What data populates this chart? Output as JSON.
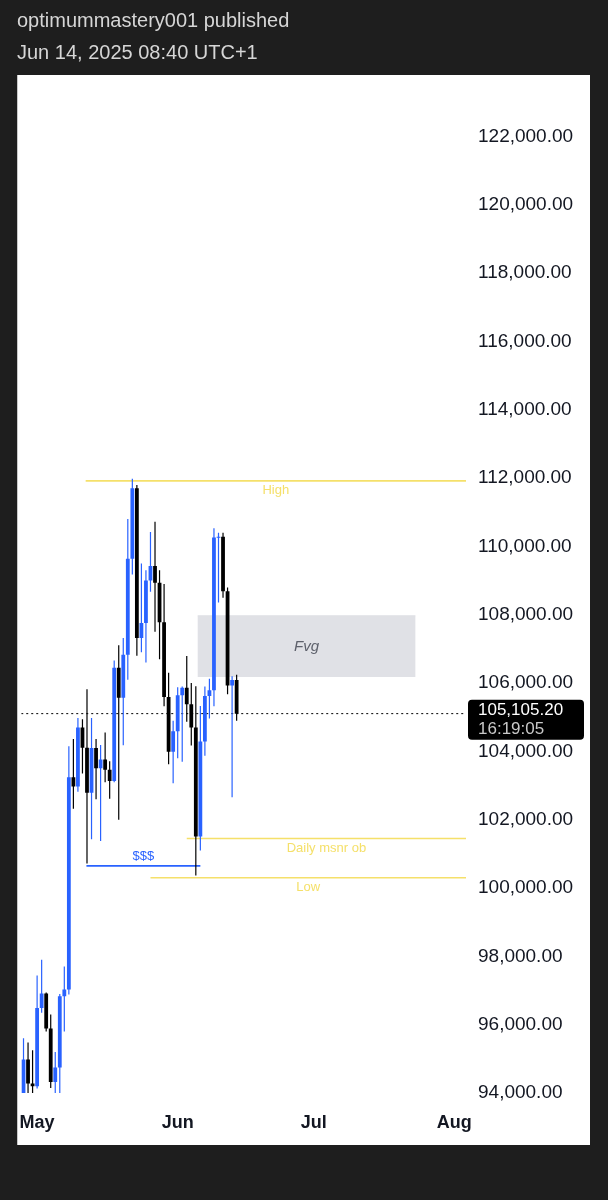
{
  "chart_data": {
    "type": "candlestick",
    "title": "optimummastery001 published",
    "subtitle": "Jun 14, 2025 08:40 UTC+1",
    "x": [
      "2025-04-28",
      "2025-04-29",
      "2025-04-30",
      "2025-05-01",
      "2025-05-02",
      "2025-05-03",
      "2025-05-04",
      "2025-05-05",
      "2025-05-06",
      "2025-05-07",
      "2025-05-08",
      "2025-05-09",
      "2025-05-10",
      "2025-05-11",
      "2025-05-12",
      "2025-05-13",
      "2025-05-14",
      "2025-05-15",
      "2025-05-16",
      "2025-05-17",
      "2025-05-18",
      "2025-05-19",
      "2025-05-20",
      "2025-05-21",
      "2025-05-22",
      "2025-05-23",
      "2025-05-24",
      "2025-05-25",
      "2025-05-26",
      "2025-05-27",
      "2025-05-28",
      "2025-05-29",
      "2025-05-30",
      "2025-05-31",
      "2025-06-01",
      "2025-06-02",
      "2025-06-03",
      "2025-06-04",
      "2025-06-05",
      "2025-06-06",
      "2025-06-07",
      "2025-06-08",
      "2025-06-09",
      "2025-06-10",
      "2025-06-11",
      "2025-06-12",
      "2025-06-13",
      "2025-06-14"
    ],
    "ohlc": [
      [
        94000,
        95600,
        94000,
        94980
      ],
      [
        94980,
        95480,
        94000,
        94280
      ],
      [
        94280,
        95250,
        94000,
        94200
      ],
      [
        94200,
        97440,
        94130,
        96490
      ],
      [
        96490,
        97900,
        96350,
        96910
      ],
      [
        96910,
        96940,
        95800,
        95890
      ],
      [
        95890,
        96300,
        94150,
        94320
      ],
      [
        94320,
        95200,
        94000,
        94750
      ],
      [
        94750,
        96900,
        94000,
        96830
      ],
      [
        96830,
        97700,
        95800,
        97030
      ],
      [
        97030,
        104150,
        96880,
        103240
      ],
      [
        103240,
        104360,
        102320,
        102970
      ],
      [
        102970,
        104980,
        102820,
        104700
      ],
      [
        104700,
        104940,
        103350,
        104110
      ],
      [
        104110,
        105820,
        100720,
        102790
      ],
      [
        102790,
        104980,
        101430,
        104100
      ],
      [
        104100,
        104360,
        102600,
        103510
      ],
      [
        103510,
        104190,
        101380,
        103760
      ],
      [
        103760,
        104550,
        103100,
        103460
      ],
      [
        103460,
        103710,
        102610,
        103130
      ],
      [
        103130,
        106660,
        103100,
        106450
      ],
      [
        106450,
        107110,
        102000,
        105570
      ],
      [
        105570,
        107320,
        104180,
        106830
      ],
      [
        106830,
        110800,
        106100,
        109640
      ],
      [
        109640,
        111980,
        109180,
        111700
      ],
      [
        111700,
        111800,
        106800,
        107320
      ],
      [
        107320,
        109500,
        106900,
        107760
      ],
      [
        107760,
        109300,
        106600,
        109000
      ],
      [
        109000,
        110420,
        108670,
        109430
      ],
      [
        109430,
        110720,
        107500,
        108940
      ],
      [
        108940,
        109300,
        106700,
        107780
      ],
      [
        107780,
        108900,
        105320,
        105590
      ],
      [
        105590,
        106300,
        103620,
        103990
      ],
      [
        103990,
        104900,
        103070,
        104590
      ],
      [
        104590,
        105880,
        103800,
        105640
      ],
      [
        105640,
        105900,
        103700,
        105860
      ],
      [
        105860,
        106790,
        104870,
        105380
      ],
      [
        105380,
        106000,
        104170,
        104700
      ],
      [
        104700,
        105910,
        100370,
        101510
      ],
      [
        101510,
        105330,
        101100,
        104290
      ],
      [
        104290,
        105900,
        103870,
        105620
      ],
      [
        105620,
        106130,
        104960,
        105790
      ],
      [
        105790,
        110530,
        105320,
        110260
      ],
      [
        110260,
        110400,
        108360,
        110280
      ],
      [
        110280,
        110400,
        108500,
        108690
      ],
      [
        108690,
        108800,
        105670,
        105930
      ],
      [
        105930,
        106200,
        102660,
        106090
      ],
      [
        106090,
        106240,
        104900,
        105105.2
      ]
    ],
    "colors": [
      "#2962ff",
      "#000000",
      "#000000",
      "#2962ff",
      "#2962ff",
      "#000000",
      "#000000",
      "#2962ff",
      "#2962ff",
      "#2962ff",
      "#2962ff",
      "#000000",
      "#2962ff",
      "#000000",
      "#000000",
      "#2962ff",
      "#000000",
      "#2962ff",
      "#000000",
      "#000000",
      "#2962ff",
      "#000000",
      "#2962ff",
      "#2962ff",
      "#2962ff",
      "#000000",
      "#2962ff",
      "#2962ff",
      "#2962ff",
      "#000000",
      "#000000",
      "#000000",
      "#000000",
      "#2962ff",
      "#2962ff",
      "#2962ff",
      "#000000",
      "#000000",
      "#000000",
      "#2962ff",
      "#2962ff",
      "#2962ff",
      "#2962ff",
      "#2962ff",
      "#000000",
      "#000000",
      "#2962ff",
      "#000000"
    ],
    "series": [
      {
        "type": "line",
        "name": "Fvg",
        "color": "#e0e1e6",
        "x": [
          "2025-06-05T10:00",
          "2025-07-23T10:00"
        ],
        "values": [
          107970,
          107970
        ],
        "lower": [
          106180,
          106180
        ],
        "upper": [
          107970,
          107970
        ]
      },
      {
        "type": "line",
        "name": "High",
        "color": "#f5e06a",
        "x": [
          "2025-05-11T17:00",
          "2025-08-03T14:00"
        ],
        "values": [
          111920,
          111920
        ]
      },
      {
        "type": "line",
        "name": "Daily msnr ob",
        "color": "#f5e06a",
        "x": [
          "2025-06-03",
          "2025-08-03T14:00"
        ],
        "values": [
          101450,
          101450
        ]
      },
      {
        "type": "line",
        "name": "Low",
        "color": "#f5e06a",
        "x": [
          "2025-05-26",
          "2025-08-03T14:00"
        ],
        "values": [
          100300,
          100300
        ]
      },
      {
        "type": "line",
        "name": "$$$",
        "color": "#2962ff",
        "x": [
          "2025-05-11T21:00",
          "2025-06-06"
        ],
        "values": [
          100650,
          100650
        ]
      }
    ],
    "xlim": [
      "2025-04-27T12:00",
      "2025-08-03T14:00"
    ],
    "xticks": [
      {
        "value": "2025-05-01",
        "label": "May"
      },
      {
        "value": "2025-06-01",
        "label": "Jun"
      },
      {
        "value": "2025-07-01",
        "label": "Jul"
      },
      {
        "value": "2025-08-01",
        "label": "Aug"
      }
    ],
    "ylim": [
      94000,
      123800
    ],
    "yticks": [
      {
        "value": 94000,
        "label": "94,000.00"
      },
      {
        "value": 96000,
        "label": "96,000.00"
      },
      {
        "value": 98000,
        "label": "98,000.00"
      },
      {
        "value": 100000,
        "label": "100,000.00"
      },
      {
        "value": 102000,
        "label": "102,000.00"
      },
      {
        "value": 104000,
        "label": "104,000.00"
      },
      {
        "value": 106000,
        "label": "106,000.00"
      },
      {
        "value": 108000,
        "label": "108,000.00"
      },
      {
        "value": 110000,
        "label": "110,000.00"
      },
      {
        "value": 112000,
        "label": "112,000.00"
      },
      {
        "value": 114000,
        "label": "114,000.00"
      },
      {
        "value": 116000,
        "label": "116,000.00"
      },
      {
        "value": 118000,
        "label": "118,000.00"
      },
      {
        "value": 120000,
        "label": "120,000.00"
      },
      {
        "value": 122000,
        "label": "122,000.00"
      }
    ],
    "ref_lines": [
      {
        "axis": "y",
        "value": 105105.2,
        "label": "105,105.20",
        "color": "#000000",
        "line_style": "dotted"
      }
    ],
    "annotations": [
      "16:19:05"
    ]
  }
}
